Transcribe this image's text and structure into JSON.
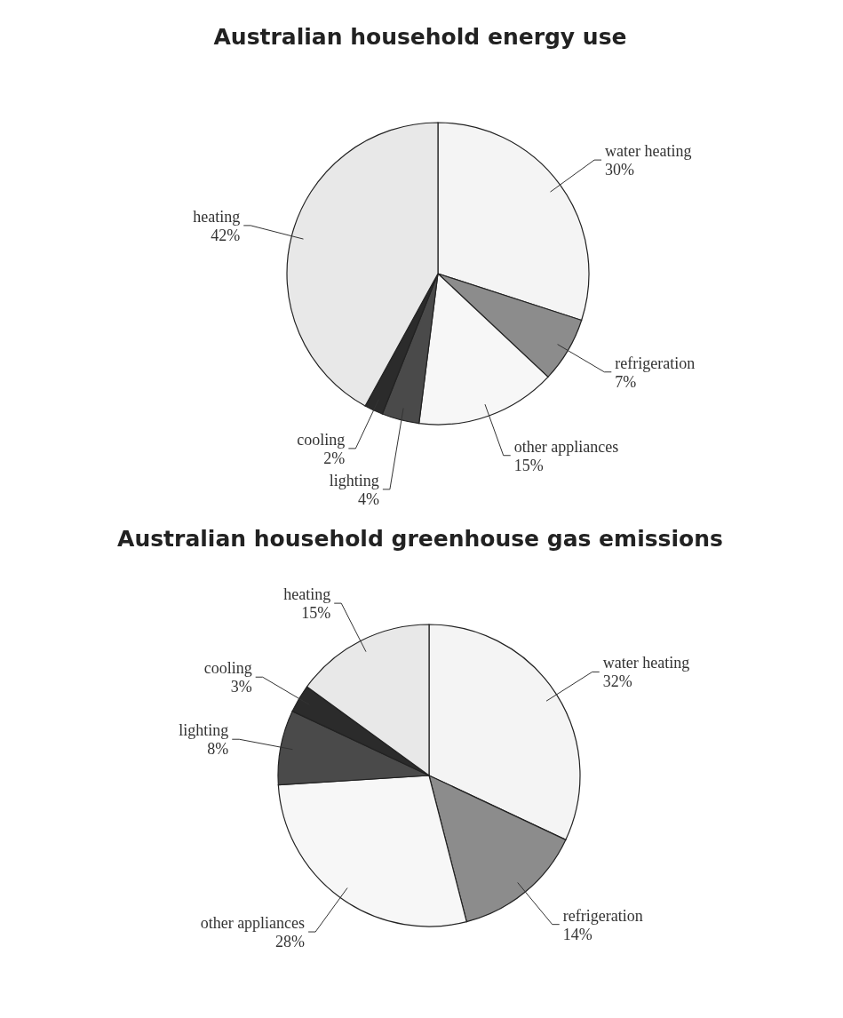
{
  "chart_data": [
    {
      "type": "pie",
      "title": "Australian household energy use",
      "categories": [
        "water heating",
        "refrigeration",
        "other appliances",
        "lighting",
        "cooling",
        "heating"
      ],
      "values": [
        30,
        7,
        15,
        4,
        2,
        42
      ],
      "value_labels": [
        "30%",
        "7%",
        "15%",
        "4%",
        "2%",
        "42%"
      ],
      "colors": [
        "#f4f4f4",
        "#8c8c8c",
        "#f7f7f7",
        "#4a4a4a",
        "#2b2b2b",
        "#e8e8e8"
      ]
    },
    {
      "type": "pie",
      "title": "Australian household greenhouse gas emissions",
      "categories": [
        "water heating",
        "refrigeration",
        "other appliances",
        "lighting",
        "cooling",
        "heating"
      ],
      "values": [
        32,
        14,
        28,
        8,
        3,
        15
      ],
      "value_labels": [
        "32%",
        "14%",
        "28%",
        "8%",
        "3%",
        "15%"
      ],
      "colors": [
        "#f4f4f4",
        "#8c8c8c",
        "#f7f7f7",
        "#4a4a4a",
        "#2b2b2b",
        "#e8e8e8"
      ]
    }
  ]
}
